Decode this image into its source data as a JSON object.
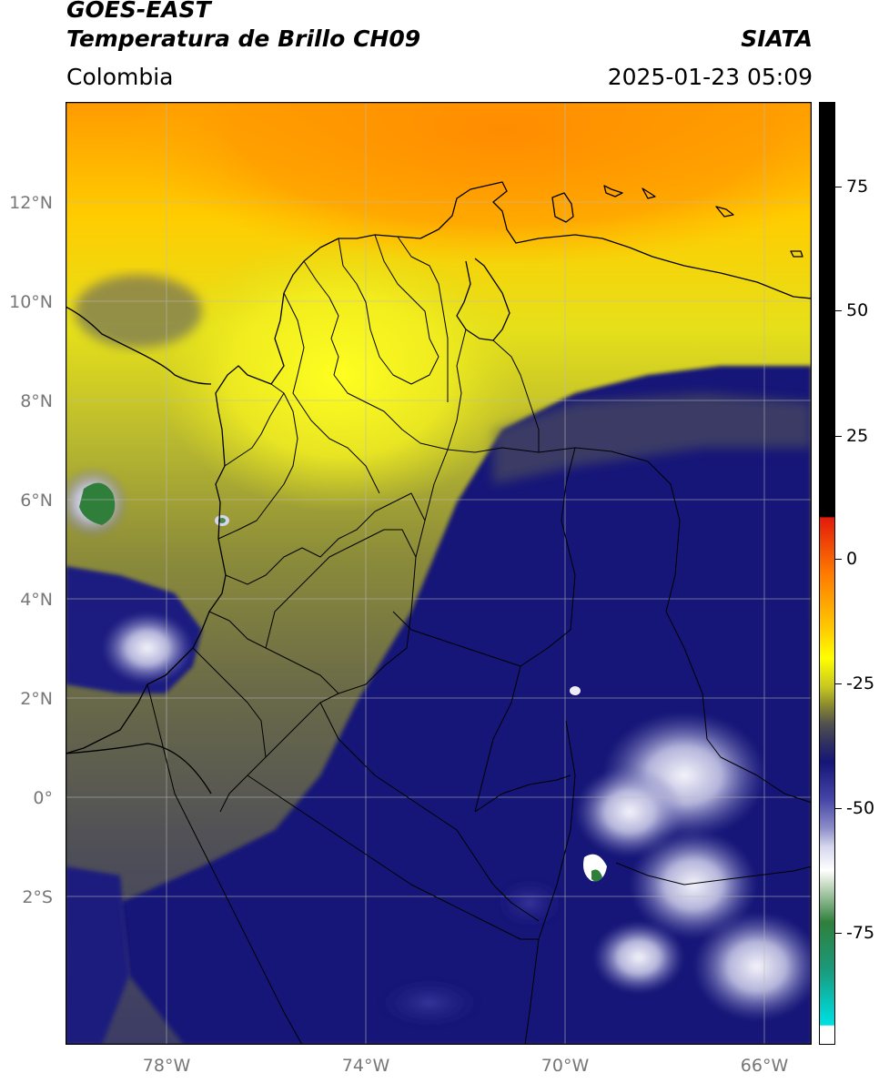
{
  "header": {
    "satellite": "GOES-EAST",
    "product": "Temperatura de Brillo CH09",
    "organization": "SIATA",
    "region": "Colombia",
    "timestamp": "2025-01-23 05:09"
  },
  "map": {
    "lat_labels": [
      "12°N",
      "10°N",
      "8°N",
      "6°N",
      "4°N",
      "2°N",
      "0°",
      "2°S"
    ],
    "lon_labels": [
      "78°W",
      "74°W",
      "70°W",
      "66°W"
    ],
    "lat_range": [
      -5,
      14
    ],
    "lon_range": [
      -80,
      -65
    ]
  },
  "colorbar": {
    "labels": [
      "75",
      "50",
      "25",
      "0",
      "-25",
      "-50",
      "-75"
    ],
    "colors": {
      "warm_black": "#000000",
      "red": "#e21b0b",
      "orange": "#ff9900",
      "yellow": "#ffff00",
      "olive": "#8a8a2e",
      "gray": "#50504f",
      "navy": "#151578",
      "lavender": "#d6d6ee",
      "white": "#ffffff",
      "green": "#2f7f3b",
      "cyan": "#00d6d6"
    }
  }
}
